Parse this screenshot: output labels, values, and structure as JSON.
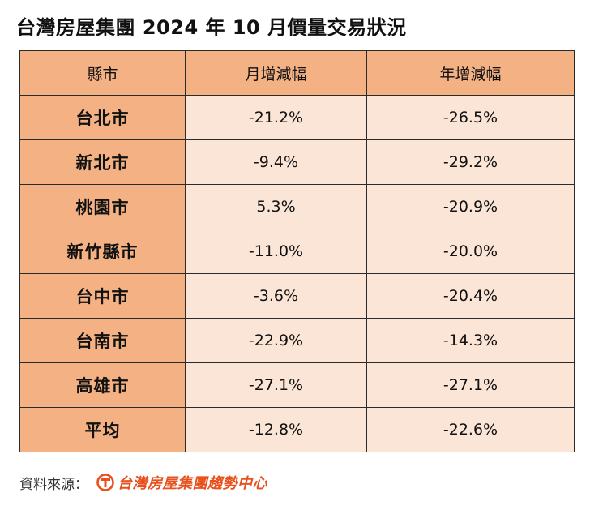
{
  "title": "台灣房屋集團 2024 年 10 月價量交易狀況",
  "table": {
    "headers": [
      "縣市",
      "月增減幅",
      "年增減幅"
    ],
    "rows": [
      {
        "city": "台北市",
        "mom": "-21.2%",
        "yoy": "-26.5%"
      },
      {
        "city": "新北市",
        "mom": "-9.4%",
        "yoy": "-29.2%"
      },
      {
        "city": "桃園市",
        "mom": "5.3%",
        "yoy": "-20.9%"
      },
      {
        "city": "新竹縣市",
        "mom": "-11.0%",
        "yoy": "-20.0%"
      },
      {
        "city": "台中市",
        "mom": "-3.6%",
        "yoy": "-20.4%"
      },
      {
        "city": "台南市",
        "mom": "-22.9%",
        "yoy": "-14.3%"
      },
      {
        "city": "高雄市",
        "mom": "-27.1%",
        "yoy": "-27.1%"
      },
      {
        "city": "平均",
        "mom": "-12.8%",
        "yoy": "-22.6%"
      }
    ]
  },
  "source": {
    "label": "資料來源：",
    "logo_text": "台灣房屋集團趨勢中心",
    "logo_icon": "taiwan-realty-logo-icon",
    "brand_color": "#e8501e"
  },
  "colors": {
    "header_fill": "#f4b183",
    "cell_fill": "#fbe5d6",
    "border": "#2b2b2b"
  }
}
